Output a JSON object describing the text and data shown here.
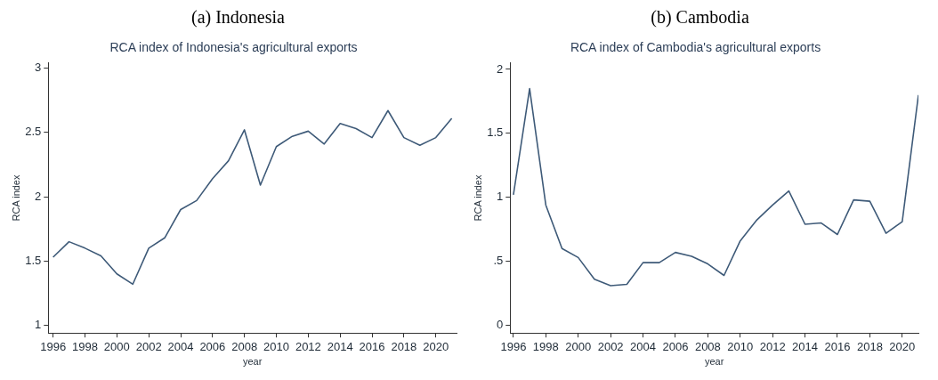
{
  "chart_data": [
    {
      "type": "line",
      "title": "(a) Indonesia",
      "subtitle": "RCA index of Indonesia's agricultural exports",
      "xlabel": "year",
      "ylabel": "RCA index",
      "x": [
        1996,
        1997,
        1998,
        1999,
        2000,
        2001,
        2002,
        2003,
        2004,
        2005,
        2006,
        2007,
        2008,
        2009,
        2010,
        2011,
        2012,
        2013,
        2014,
        2015,
        2016,
        2017,
        2018,
        2019,
        2020,
        2021
      ],
      "series": [
        {
          "color": "#3e5a78",
          "values": [
            1.53,
            1.65,
            1.6,
            1.54,
            1.4,
            1.32,
            1.6,
            1.68,
            1.9,
            1.97,
            2.14,
            2.28,
            2.52,
            2.09,
            2.39,
            2.47,
            2.51,
            2.41,
            2.57,
            2.53,
            2.46,
            2.67,
            2.46,
            2.4,
            2.46,
            2.61
          ]
        }
      ],
      "xlim": [
        1995.7,
        2021.3
      ],
      "xticks": [
        1996,
        1998,
        2000,
        2002,
        2004,
        2006,
        2008,
        2010,
        2012,
        2014,
        2016,
        2018,
        2020
      ],
      "ylim": [
        0.94,
        3.04
      ],
      "yticks": [
        1,
        1.5,
        2,
        2.5,
        3
      ],
      "marker": "none",
      "legend": false,
      "grid": false
    },
    {
      "type": "line",
      "title": "(b) Cambodia",
      "subtitle": "RCA index of Cambodia's agricultural exports",
      "xlabel": "year",
      "ylabel": "RCA index",
      "x": [
        1996,
        1997,
        1998,
        1999,
        2000,
        2001,
        2002,
        2003,
        2004,
        2005,
        2006,
        2007,
        2008,
        2009,
        2010,
        2011,
        2012,
        2013,
        2014,
        2015,
        2016,
        2017,
        2018,
        2019,
        2020,
        2021
      ],
      "series": [
        {
          "color": "#3e5a78",
          "values": [
            1.02,
            1.85,
            0.94,
            0.6,
            0.53,
            0.36,
            0.31,
            0.32,
            0.49,
            0.49,
            0.57,
            0.54,
            0.48,
            0.39,
            0.66,
            0.82,
            0.94,
            1.05,
            0.79,
            0.8,
            0.71,
            0.98,
            0.97,
            0.72,
            0.81,
            1.8
          ]
        }
      ],
      "xlim": [
        1995.8,
        2021
      ],
      "xticks": [
        1996,
        1998,
        2000,
        2002,
        2004,
        2006,
        2008,
        2010,
        2012,
        2014,
        2016,
        2018,
        2020
      ],
      "ylim": [
        -0.06,
        2.05
      ],
      "yticks": [
        0,
        {
          "value": 0.5,
          "label": ".5"
        },
        1,
        1.5,
        2
      ],
      "marker": "none",
      "legend": false,
      "grid": false
    }
  ]
}
